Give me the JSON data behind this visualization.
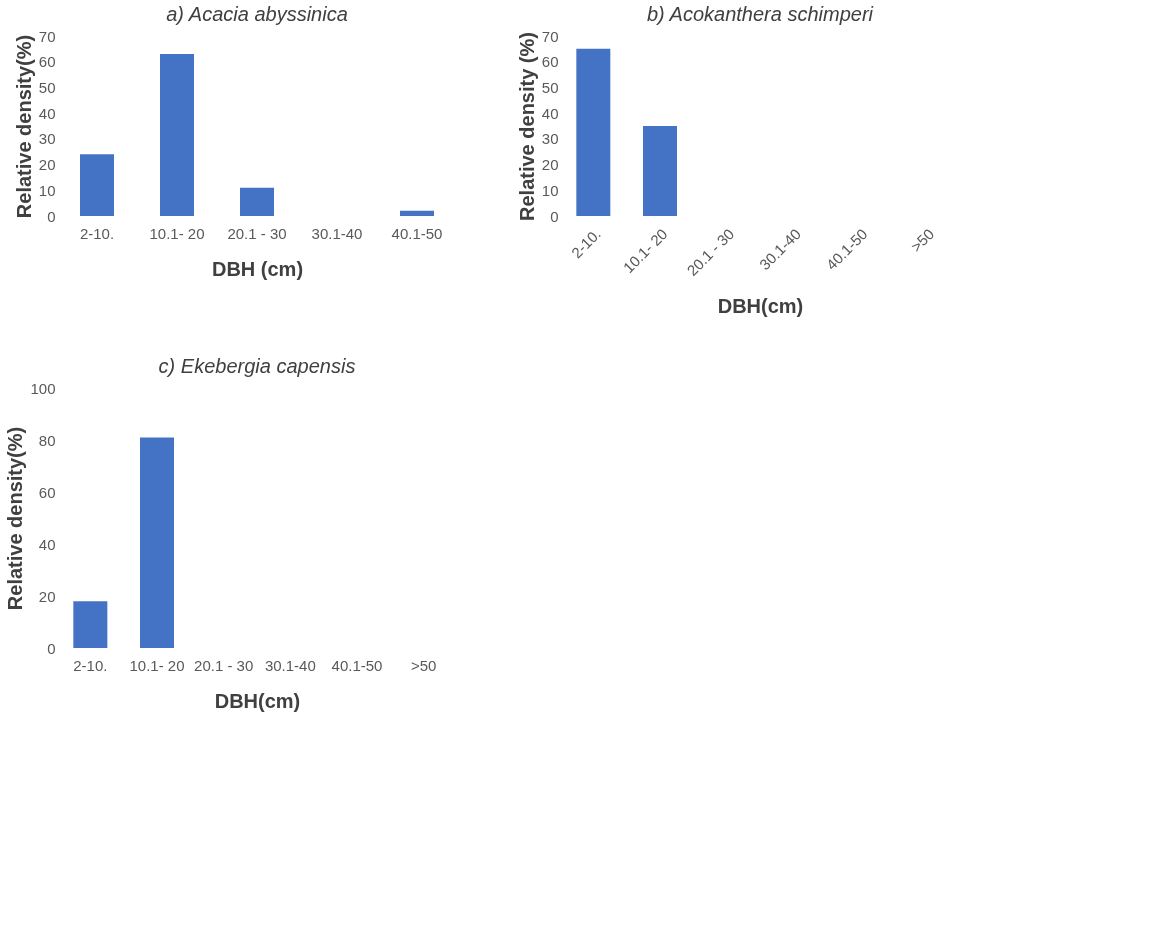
{
  "chart_data": [
    {
      "type": "bar",
      "title": "a) Acacia abyssinica",
      "xlabel": "DBH (cm)",
      "ylabel": "Relative density(%)",
      "categories": [
        "2-10.",
        "10.1- 20",
        "20.1 - 30",
        "30.1-40",
        "40.1-50"
      ],
      "values": [
        24,
        63,
        11,
        0,
        2
      ],
      "color": "#4472c4",
      "ylim": [
        0,
        70
      ],
      "yticks": [
        0,
        10,
        20,
        30,
        40,
        50,
        60,
        70
      ],
      "grid": false
    },
    {
      "type": "bar",
      "title": "b) Acokanthera schimperi",
      "xlabel": "DBH(cm)",
      "ylabel": "Relative density (%)",
      "categories": [
        "2-10.",
        "10.1- 20",
        "20.1 - 30",
        "30.1-40",
        "40.1-50",
        ">50"
      ],
      "values": [
        65,
        35,
        0,
        0,
        0,
        0
      ],
      "color": "#4472c4",
      "ylim": [
        0,
        70
      ],
      "yticks": [
        0,
        10,
        20,
        30,
        40,
        50,
        60,
        70
      ],
      "grid": false
    },
    {
      "type": "bar",
      "title": "c) Ekebergia capensis",
      "xlabel": "DBH(cm)",
      "ylabel": "Relative density(%)",
      "categories": [
        "2-10.",
        "10.1- 20",
        "20.1 - 30",
        "30.1-40",
        "40.1-50",
        ">50"
      ],
      "values": [
        18,
        81,
        0,
        0,
        0,
        0
      ],
      "color": "#4472c4",
      "ylim": [
        0,
        100
      ],
      "yticks": [
        0,
        20,
        40,
        60,
        80,
        100
      ],
      "grid": false
    }
  ]
}
